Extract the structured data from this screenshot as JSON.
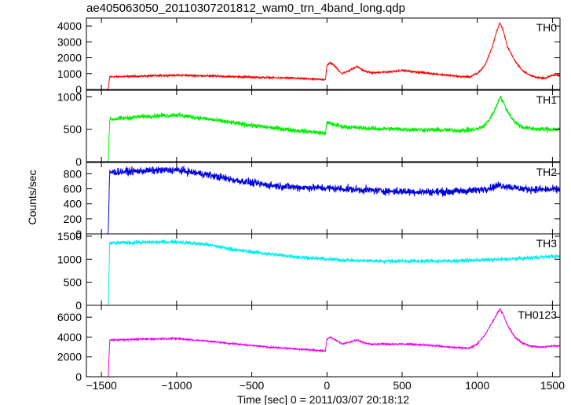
{
  "title": "ae405063050_20110307201812_wam0_trn_4band_long.qdp",
  "chart_data": {
    "type": "line",
    "title": "ae405063050_20110307201812_wam0_trn_4band_long.qdp",
    "xlabel": "Time [sec] 0 = 2011/03/07 20:18:12",
    "ylabel": "Counts/sec",
    "xlim": [
      -1600,
      1550
    ],
    "x_ticks": [
      -1500,
      -1000,
      -500,
      0,
      500,
      1000,
      1500
    ],
    "x_tick_labels": [
      "−1500",
      "−1000",
      "−500",
      "0",
      "500",
      "1000",
      "1500"
    ],
    "grid": false,
    "panels": [
      {
        "name": "TH0",
        "color": "#ff0000",
        "ylim": [
          0,
          4500
        ],
        "y_ticks": [
          0,
          1000,
          2000,
          3000,
          4000
        ],
        "y_tick_labels": [
          "0",
          "1000",
          "2000",
          "3000",
          "4000"
        ],
        "noise": 40,
        "x": [
          -1600,
          -1455,
          -1445,
          -1200,
          -1000,
          -800,
          -600,
          -400,
          -200,
          -10,
          0,
          20,
          50,
          100,
          150,
          200,
          250,
          300,
          400,
          500,
          600,
          700,
          800,
          900,
          950,
          1000,
          1050,
          1100,
          1130,
          1150,
          1170,
          1200,
          1250,
          1300,
          1350,
          1400,
          1450,
          1500
        ],
        "y": [
          0,
          0,
          800,
          850,
          900,
          860,
          800,
          750,
          700,
          620,
          1500,
          1700,
          1500,
          1000,
          1200,
          1450,
          1150,
          1050,
          1100,
          1200,
          1100,
          1000,
          900,
          800,
          800,
          1000,
          1500,
          2700,
          3700,
          4200,
          3800,
          2700,
          1800,
          1200,
          900,
          750,
          700,
          900
        ]
      },
      {
        "name": "TH1",
        "color": "#00ee00",
        "ylim": [
          0,
          1100
        ],
        "y_ticks": [
          0,
          500,
          1000
        ],
        "y_tick_labels": [
          "0",
          "500",
          "1000"
        ],
        "noise": 25,
        "x": [
          -1600,
          -1455,
          -1445,
          -1200,
          -1000,
          -800,
          -600,
          -400,
          -200,
          -10,
          0,
          100,
          300,
          500,
          700,
          900,
          1000,
          1050,
          1100,
          1130,
          1150,
          1170,
          1200,
          1250,
          1300,
          1400,
          1500
        ],
        "y": [
          0,
          0,
          650,
          700,
          720,
          660,
          590,
          530,
          480,
          440,
          600,
          540,
          510,
          500,
          490,
          480,
          500,
          560,
          720,
          870,
          1000,
          930,
          780,
          610,
          530,
          500,
          500
        ]
      },
      {
        "name": "TH2",
        "color": "#0000dd",
        "ylim": [
          0,
          950
        ],
        "y_ticks": [
          0,
          200,
          400,
          600,
          800
        ],
        "y_tick_labels": [
          "0",
          "200",
          "400",
          "600",
          "800"
        ],
        "noise": 35,
        "x": [
          -1600,
          -1455,
          -1445,
          -1200,
          -1000,
          -800,
          -600,
          -400,
          -200,
          0,
          200,
          400,
          600,
          800,
          1000,
          1100,
          1150,
          1200,
          1300,
          1400,
          1500
        ],
        "y": [
          0,
          0,
          820,
          840,
          850,
          790,
          710,
          650,
          620,
          610,
          590,
          570,
          560,
          560,
          580,
          620,
          650,
          630,
          600,
          590,
          590
        ]
      },
      {
        "name": "TH3",
        "color": "#00eeee",
        "ylim": [
          0,
          1550
        ],
        "y_ticks": [
          0,
          500,
          1000,
          1500
        ],
        "y_tick_labels": [
          "0",
          "500",
          "1000",
          "1500"
        ],
        "noise": 30,
        "x": [
          -1600,
          -1455,
          -1445,
          -1200,
          -1000,
          -800,
          -600,
          -400,
          -200,
          0,
          200,
          400,
          600,
          800,
          1000,
          1200,
          1400,
          1500
        ],
        "y": [
          0,
          0,
          1350,
          1370,
          1380,
          1320,
          1200,
          1120,
          1050,
          1000,
          970,
          960,
          960,
          960,
          980,
          1000,
          1040,
          1060
        ]
      },
      {
        "name": "TH0123",
        "color": "#ee00ee",
        "ylim": [
          0,
          7200
        ],
        "y_ticks": [
          0,
          2000,
          4000,
          6000
        ],
        "y_tick_labels": [
          "0",
          "2000",
          "4000",
          "6000"
        ],
        "noise": 60,
        "x": [
          -1600,
          -1455,
          -1445,
          -1200,
          -1000,
          -800,
          -600,
          -400,
          -200,
          -10,
          0,
          20,
          60,
          100,
          150,
          200,
          250,
          300,
          400,
          500,
          600,
          700,
          800,
          900,
          950,
          1000,
          1050,
          1100,
          1130,
          1150,
          1170,
          1200,
          1250,
          1300,
          1350,
          1400,
          1450,
          1500
        ],
        "y": [
          0,
          0,
          3700,
          3800,
          3850,
          3600,
          3300,
          3000,
          2800,
          2600,
          3800,
          4000,
          3700,
          3300,
          3500,
          3700,
          3400,
          3300,
          3300,
          3300,
          3250,
          3150,
          3000,
          2900,
          2900,
          3300,
          4200,
          5500,
          6300,
          6800,
          6400,
          5200,
          4000,
          3400,
          3100,
          3000,
          3000,
          3100
        ]
      }
    ]
  }
}
